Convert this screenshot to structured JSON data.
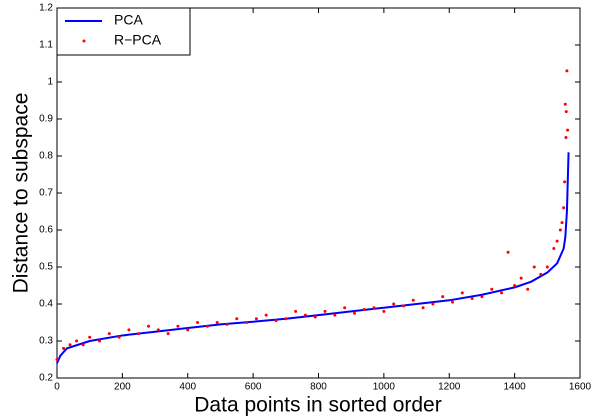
{
  "chart_data": {
    "type": "line_scatter",
    "xlabel": "Data points in sorted order",
    "ylabel": "Distance to subspace",
    "xlim": [
      0,
      1600
    ],
    "xticks": [
      0,
      200,
      400,
      600,
      800,
      1000,
      1200,
      1400,
      1600
    ],
    "ylim": [
      0.2,
      1.2
    ],
    "yticks": [
      0.2,
      0.3,
      0.4,
      0.5,
      0.6,
      0.7,
      0.8,
      0.9,
      1,
      1.1,
      1.2
    ],
    "legend": "upper left",
    "series": [
      {
        "name": "PCA",
        "color": "#0000ff",
        "kind": "line",
        "x": [
          0,
          10,
          30,
          100,
          200,
          300,
          400,
          500,
          600,
          700,
          800,
          900,
          1000,
          1100,
          1200,
          1300,
          1400,
          1450,
          1500,
          1530,
          1550,
          1555,
          1560,
          1565
        ],
        "values": [
          0.24,
          0.26,
          0.28,
          0.3,
          0.315,
          0.325,
          0.335,
          0.345,
          0.352,
          0.36,
          0.37,
          0.38,
          0.39,
          0.4,
          0.41,
          0.425,
          0.445,
          0.46,
          0.485,
          0.51,
          0.55,
          0.58,
          0.65,
          0.81
        ]
      },
      {
        "name": "R−PCA",
        "color": "#ff0000",
        "kind": "scatter",
        "x": [
          0,
          20,
          40,
          60,
          80,
          100,
          130,
          160,
          190,
          220,
          250,
          280,
          310,
          340,
          370,
          400,
          430,
          460,
          490,
          520,
          550,
          580,
          610,
          640,
          670,
          700,
          730,
          760,
          790,
          820,
          850,
          880,
          910,
          940,
          970,
          1000,
          1030,
          1060,
          1090,
          1120,
          1150,
          1180,
          1210,
          1240,
          1270,
          1300,
          1330,
          1360,
          1380,
          1400,
          1420,
          1440,
          1460,
          1480,
          1500,
          1520,
          1530,
          1540,
          1545,
          1550,
          1553,
          1555,
          1557,
          1558,
          1560,
          1562
        ],
        "values": [
          0.25,
          0.28,
          0.29,
          0.3,
          0.29,
          0.31,
          0.3,
          0.32,
          0.31,
          0.33,
          0.32,
          0.34,
          0.33,
          0.32,
          0.34,
          0.33,
          0.35,
          0.34,
          0.35,
          0.345,
          0.36,
          0.35,
          0.36,
          0.37,
          0.355,
          0.36,
          0.38,
          0.37,
          0.365,
          0.38,
          0.37,
          0.39,
          0.375,
          0.385,
          0.39,
          0.38,
          0.4,
          0.395,
          0.41,
          0.39,
          0.4,
          0.42,
          0.405,
          0.43,
          0.415,
          0.42,
          0.44,
          0.43,
          0.54,
          0.45,
          0.47,
          0.44,
          0.5,
          0.48,
          0.5,
          0.55,
          0.57,
          0.6,
          0.62,
          0.66,
          0.73,
          0.94,
          0.85,
          0.92,
          1.03,
          0.87
        ]
      }
    ]
  }
}
